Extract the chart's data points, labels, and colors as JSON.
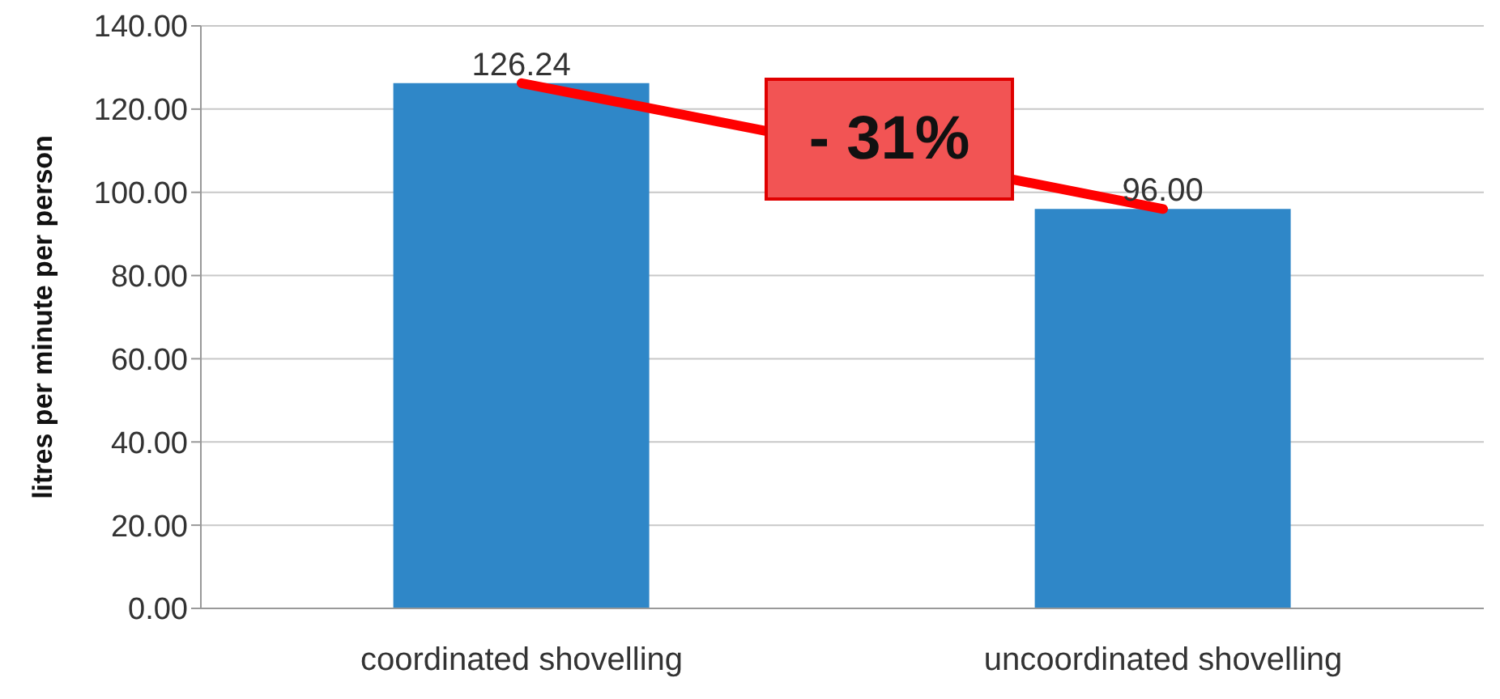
{
  "chart_data": {
    "type": "bar",
    "ylabel": "litres per minute per person",
    "categories": [
      "coordinated shovelling",
      "uncoordinated shovelling"
    ],
    "series": [
      {
        "color": "#2f87c8",
        "values": [
          126.24,
          96.0
        ],
        "value_labels": [
          "126.24",
          "96.00"
        ]
      },
      {
        "type": "line",
        "color": "#ff0000",
        "values": [
          126.24,
          96.0
        ]
      }
    ],
    "ylim": [
      0,
      140
    ],
    "yticks": [
      {
        "value": 0,
        "label": "0.00"
      },
      {
        "value": 20,
        "label": "20.00"
      },
      {
        "value": 40,
        "label": "40.00"
      },
      {
        "value": 60,
        "label": "60.00"
      },
      {
        "value": 80,
        "label": "80.00"
      },
      {
        "value": 100,
        "label": "100.00"
      },
      {
        "value": 120,
        "label": "120.00"
      },
      {
        "value": 140,
        "label": "140.00"
      }
    ],
    "grid": "y",
    "marker": "none",
    "annotations": [
      "- 31%"
    ]
  }
}
